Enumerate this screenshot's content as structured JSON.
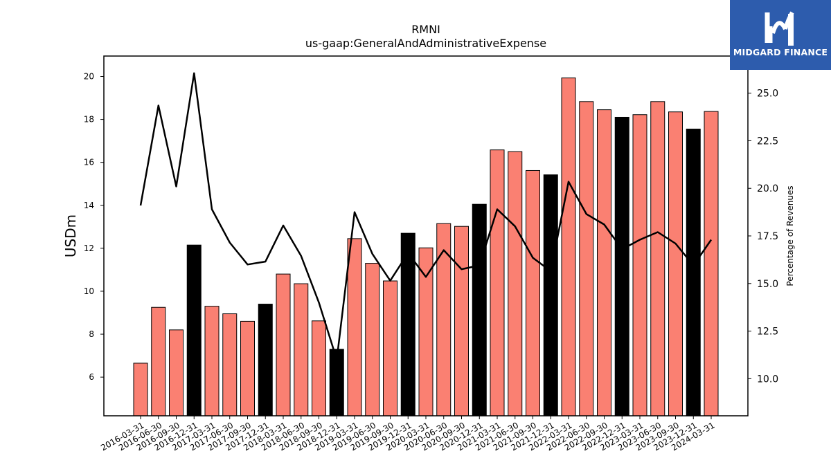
{
  "chart_data": {
    "type": "bar",
    "title": "RMNI",
    "subtitle": "us-gaap:GeneralAndAdministrativeExpense",
    "ylabel": "USDm",
    "y2label": "Percentage of Revenues",
    "ylim": [
      4.2,
      20.95
    ],
    "y2lim": [
      8.05,
      26.95
    ],
    "yticks": [
      6,
      8,
      10,
      12,
      14,
      16,
      18,
      20
    ],
    "y2ticks": [
      "10.0",
      "12.5",
      "15.0",
      "17.5",
      "20.0",
      "22.5",
      "25.0"
    ],
    "grid": false,
    "categories": [
      "2016-03-31",
      "2016-06-30",
      "2016-09-30",
      "2016-12-31",
      "2017-03-31",
      "2017-06-30",
      "2017-09-30",
      "2017-12-31",
      "2018-03-31",
      "2018-06-30",
      "2018-09-30",
      "2018-12-31",
      "2019-03-31",
      "2019-06-30",
      "2019-09-30",
      "2019-12-31",
      "2020-03-31",
      "2020-06-30",
      "2020-09-30",
      "2020-12-31",
      "2021-03-31",
      "2021-06-30",
      "2021-09-30",
      "2021-12-31",
      "2022-03-31",
      "2022-06-30",
      "2022-09-30",
      "2022-12-31",
      "2023-03-31",
      "2023-06-30",
      "2023-09-30",
      "2023-12-31",
      "2024-03-31"
    ],
    "series": [
      {
        "kind": "bar",
        "axis": "left",
        "values": [
          6.65,
          9.25,
          8.2,
          12.15,
          9.3,
          8.95,
          8.6,
          9.4,
          10.8,
          10.35,
          8.62,
          7.3,
          12.45,
          11.3,
          10.48,
          12.7,
          12.02,
          13.15,
          13.02,
          14.05,
          16.58,
          16.5,
          15.62,
          15.42,
          19.93,
          18.83,
          18.45,
          18.1,
          18.22,
          18.83,
          18.35,
          17.55,
          18.37
        ]
      },
      {
        "kind": "line",
        "axis": "right",
        "values": [
          19.1,
          24.35,
          20.1,
          26.05,
          18.9,
          17.15,
          16.0,
          16.15,
          18.05,
          16.45,
          14.0,
          11.0,
          18.75,
          16.55,
          15.15,
          16.6,
          15.35,
          16.75,
          15.75,
          15.95,
          18.9,
          18.0,
          16.35,
          15.65,
          20.35,
          18.65,
          18.1,
          16.8,
          17.3,
          17.7,
          17.1,
          15.95,
          17.3
        ]
      }
    ],
    "colors": {
      "bar_quarter": "#fa8072",
      "bar_year_end": "#000000",
      "line": "#000000",
      "bar_edge": "#000000"
    }
  },
  "logo": {
    "text": "MIDGARD FINANCE",
    "background": "#2d5cad"
  }
}
